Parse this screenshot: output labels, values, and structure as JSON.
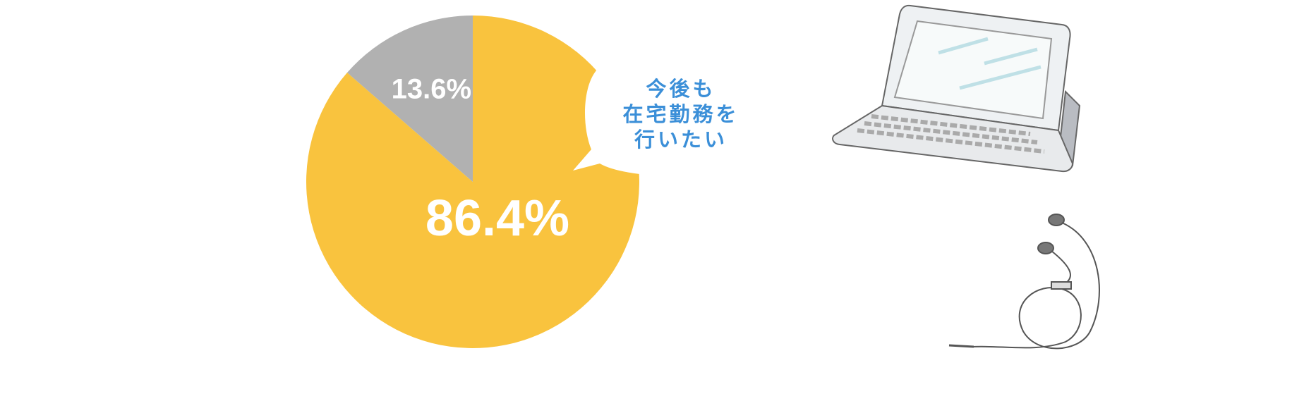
{
  "chart_data": {
    "type": "pie",
    "values": [
      86.4,
      13.6
    ],
    "value_labels": [
      "86.4%",
      "13.6%"
    ],
    "colors": [
      "#f9c33e",
      "#b1b1b1"
    ],
    "annotation": [
      "今後も",
      "在宅勤務を",
      "行いたい"
    ]
  }
}
